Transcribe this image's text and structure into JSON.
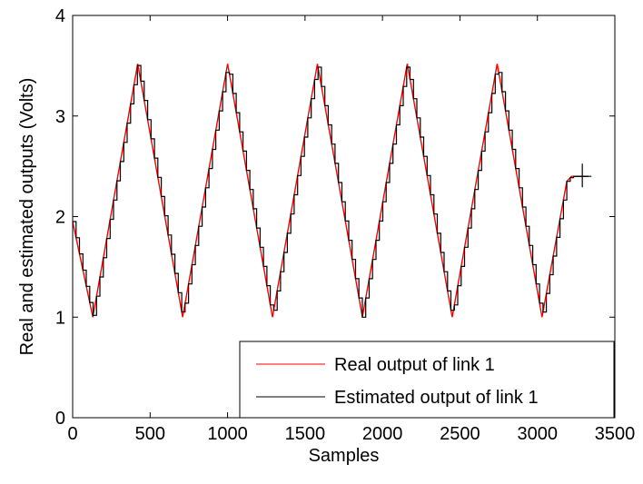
{
  "chart_data": {
    "type": "line",
    "xlabel": "Samples",
    "ylabel": "Real and estimated outputs (Volts)",
    "xlim": [
      0,
      3500
    ],
    "ylim": [
      0,
      4
    ],
    "xticks": [
      0,
      500,
      1000,
      1500,
      2000,
      2500,
      3000,
      3500
    ],
    "yticks": [
      0,
      1,
      2,
      3,
      4
    ],
    "grid": false,
    "legend_position": "bottom-right",
    "series": [
      {
        "name": "Real output of link 1",
        "color": "#ff0000",
        "style": "smooth",
        "points": [
          [
            0,
            1.95
          ],
          [
            130,
            1.0
          ],
          [
            420,
            3.52
          ],
          [
            710,
            1.0
          ],
          [
            1000,
            3.52
          ],
          [
            1290,
            1.0
          ],
          [
            1580,
            3.52
          ],
          [
            1870,
            1.0
          ],
          [
            2160,
            3.52
          ],
          [
            2450,
            1.0
          ],
          [
            2740,
            3.52
          ],
          [
            3030,
            1.0
          ],
          [
            3190,
            2.35
          ],
          [
            3220,
            2.4
          ],
          [
            3330,
            2.4
          ]
        ]
      },
      {
        "name": "Estimated output of link 1",
        "color": "#000000",
        "style": "staircase",
        "points": [
          [
            0,
            1.95
          ],
          [
            130,
            1.0
          ],
          [
            420,
            3.52
          ],
          [
            710,
            1.0
          ],
          [
            1000,
            3.52
          ],
          [
            1290,
            1.0
          ],
          [
            1580,
            3.52
          ],
          [
            1870,
            1.0
          ],
          [
            2160,
            3.52
          ],
          [
            2450,
            1.0
          ],
          [
            2740,
            3.52
          ],
          [
            3030,
            1.0
          ],
          [
            3190,
            2.35
          ],
          [
            3220,
            2.4
          ],
          [
            3330,
            2.4
          ]
        ]
      }
    ]
  }
}
